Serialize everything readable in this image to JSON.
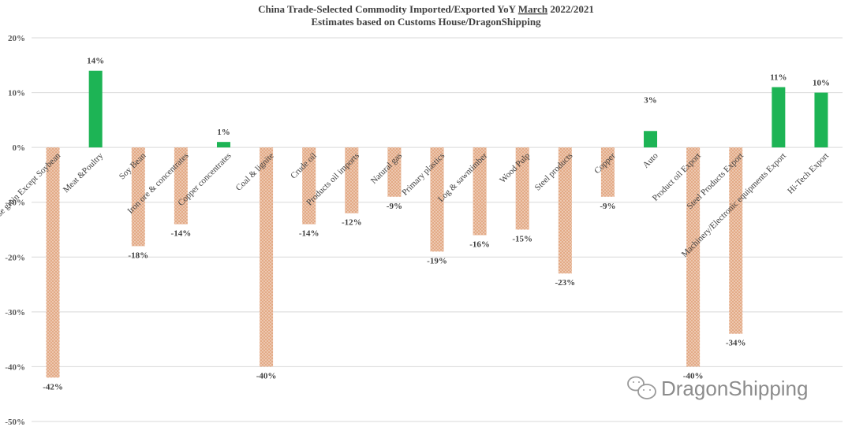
{
  "chart_data": {
    "type": "bar",
    "title": "China Trade-Selected Commodity Imported/Exported YoY March 2022/2021",
    "title_parts": {
      "before": "China Trade-Selected Commodity Imported/Exported YoY ",
      "underlined": "March",
      "after": " 2022/2021"
    },
    "subtitle": "Estimates based on Customs House/DragonShipping",
    "ylim": [
      -50,
      20
    ],
    "yticks": [
      20,
      10,
      0,
      -10,
      -20,
      -30,
      -40,
      -50
    ],
    "ytick_labels": [
      "20%",
      "10%",
      "0%",
      "-10%",
      "-20%",
      "-30%",
      "-40%",
      "-50%"
    ],
    "grid": true,
    "categories": [
      "Grain& coarse grain Except Soybean",
      "Meat &Poultry",
      "Soy Bean",
      "Iron ore & concentrates",
      "Copper concentrates",
      "Coal & lignite",
      "Crude oil",
      "Products oil imports",
      "Natural gas",
      "Primary plastics",
      "Log & sawntimber",
      "Wood Pulp",
      "Steel products",
      "Copper",
      "Auto",
      "Product oil Export",
      "Steel Products Export",
      "Machinery/Electronic equipments Export",
      "Hi-Tech Export"
    ],
    "values": [
      -42,
      14,
      -18,
      -14,
      1,
      -40,
      -14,
      -12,
      -9,
      -19,
      -16,
      -15,
      -23,
      -9,
      3,
      -40,
      -34,
      11,
      10
    ],
    "labels": [
      "-42%",
      "14%",
      "-18%",
      "-14%",
      "1%",
      "-40%",
      "-14%",
      "-12%",
      "-9%",
      "-19%",
      "-16%",
      "-15%",
      "-23%",
      "-9%",
      "3%",
      "-40%",
      "-34%",
      "11%",
      "10%"
    ],
    "colors": {
      "positive": "#1db455",
      "negative": "#e3aa86"
    }
  },
  "watermark": {
    "icon": "wechat-icon",
    "text": "DragonShipping"
  }
}
